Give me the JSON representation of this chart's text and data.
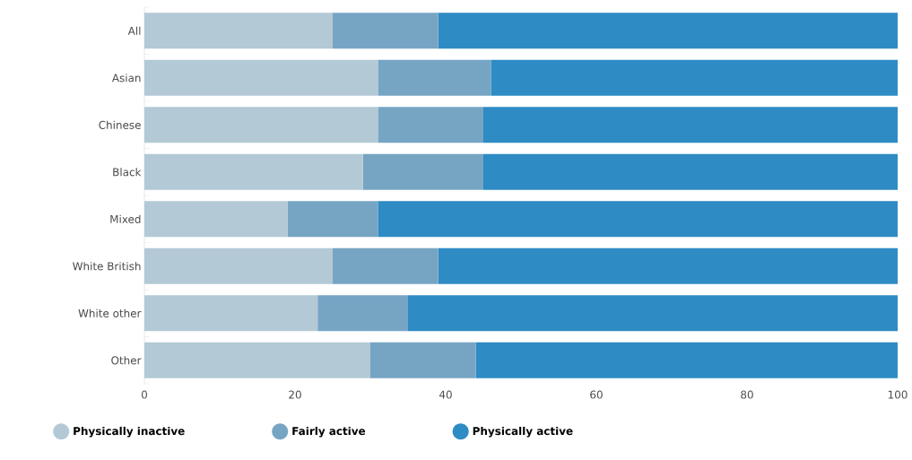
{
  "chart_data": {
    "type": "bar",
    "orientation": "horizontal",
    "stacked": true,
    "categories": [
      "All",
      "Asian",
      "Chinese",
      "Black",
      "Mixed",
      "White British",
      "White other",
      "Other"
    ],
    "series": [
      {
        "name": "Physically inactive",
        "color": "#b3c9d6",
        "values": [
          25,
          31,
          31,
          29,
          19,
          25,
          23,
          30
        ]
      },
      {
        "name": "Fairly active",
        "color": "#76a5c4",
        "values": [
          14,
          15,
          14,
          16,
          12,
          14,
          12,
          14
        ]
      },
      {
        "name": "Physically active",
        "color": "#2e8bc4",
        "values": [
          61,
          54,
          55,
          55,
          69,
          61,
          65,
          56
        ]
      }
    ],
    "xlim": [
      0,
      100
    ],
    "xticks": [
      0,
      20,
      40,
      60,
      80,
      100
    ],
    "legend": "bottom",
    "grid": false
  }
}
